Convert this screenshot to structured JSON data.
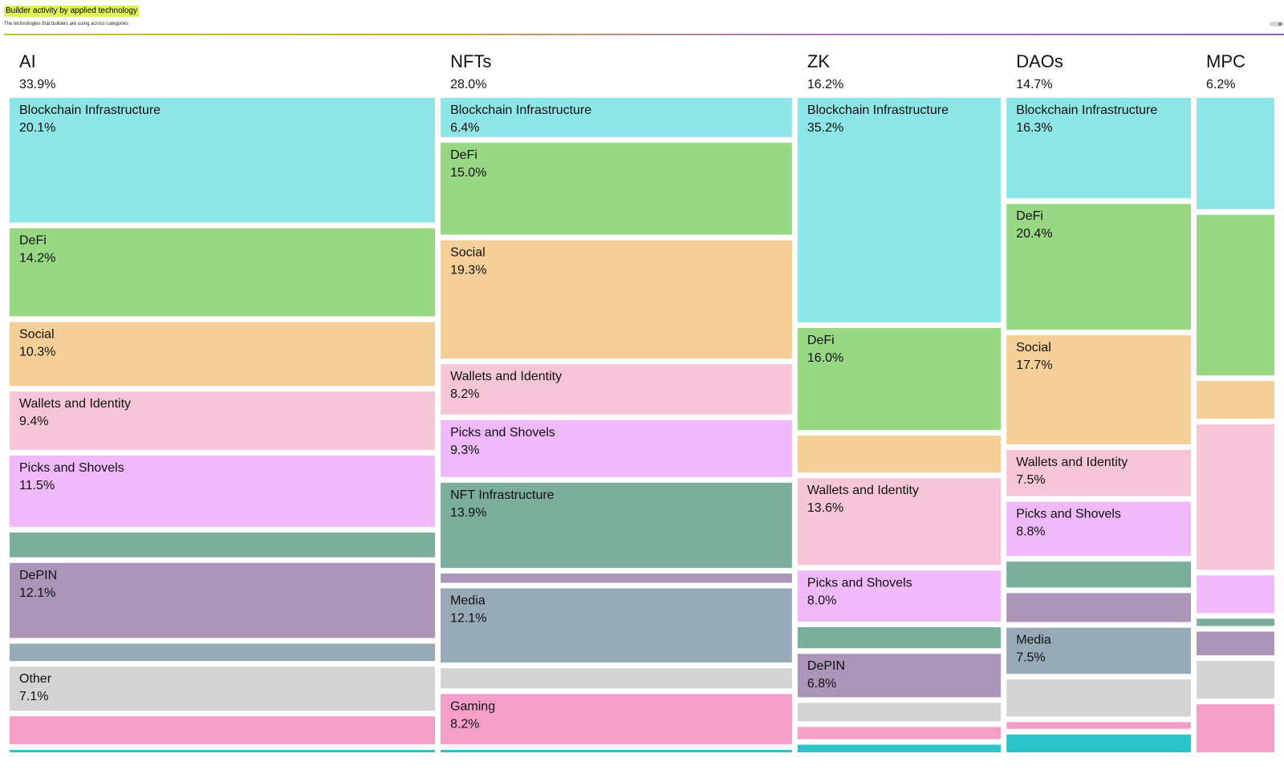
{
  "title": "Builder activity by applied technology",
  "subtitle": "The technologies that builders are using across categories",
  "colors": {
    "Blockchain Infrastructure": "#8ee5e5",
    "DeFi": "#98d884",
    "Social": "#f5cf98",
    "Wallets and Identity": "#f7c5d8",
    "Picks and Shovels": "#efb9fa",
    "NFT Infrastructure": "#7bae9b",
    "DePIN": "#ab95b8",
    "Media": "#97aab7",
    "Other": "#d4d4d4",
    "Gaming": "#f59fc8",
    "Teal": "#2cc3c9"
  },
  "chart_data": {
    "type": "treemap",
    "columns": [
      {
        "name": "AI",
        "share": 33.9,
        "cells": [
          {
            "category": "Blockchain Infrastructure",
            "label": "Blockchain Infrastructure",
            "value": 20.1
          },
          {
            "category": "DeFi",
            "label": "DeFi",
            "value": 14.2
          },
          {
            "category": "Social",
            "label": "Social",
            "value": 10.3
          },
          {
            "category": "Wallets and Identity",
            "label": "Wallets and Identity",
            "value": 9.4
          },
          {
            "category": "Picks and Shovels",
            "label": "Picks and Shovels",
            "value": 11.5
          },
          {
            "category": "NFT Infrastructure",
            "label": "",
            "value": 4.0
          },
          {
            "category": "DePIN",
            "label": "DePIN",
            "value": 12.1
          },
          {
            "category": "Media",
            "label": "",
            "value": 2.8
          },
          {
            "category": "Other",
            "label": "Other",
            "value": 7.1
          },
          {
            "category": "Gaming",
            "label": "",
            "value": 4.5
          },
          {
            "category": "Teal",
            "label": "",
            "value": 0.4
          }
        ]
      },
      {
        "name": "NFTs",
        "share": 28.0,
        "cells": [
          {
            "category": "Blockchain Infrastructure",
            "label": "Blockchain Infrastructure",
            "value": 6.4
          },
          {
            "category": "DeFi",
            "label": "DeFi",
            "value": 15.0
          },
          {
            "category": "Social",
            "label": "Social",
            "value": 19.3
          },
          {
            "category": "Wallets and Identity",
            "label": "Wallets and Identity",
            "value": 8.2
          },
          {
            "category": "Picks and Shovels",
            "label": "Picks and Shovels",
            "value": 9.3
          },
          {
            "category": "NFT Infrastructure",
            "label": "NFT Infrastructure",
            "value": 13.9
          },
          {
            "category": "DePIN",
            "label": "",
            "value": 1.5
          },
          {
            "category": "Media",
            "label": "Media",
            "value": 12.1
          },
          {
            "category": "Other",
            "label": "",
            "value": 3.3
          },
          {
            "category": "Gaming",
            "label": "Gaming",
            "value": 8.2
          },
          {
            "category": "Teal",
            "label": "",
            "value": 0.4
          }
        ]
      },
      {
        "name": "ZK",
        "share": 16.2,
        "cells": [
          {
            "category": "Blockchain Infrastructure",
            "label": "Blockchain Infrastructure",
            "value": 35.2
          },
          {
            "category": "DeFi",
            "label": "DeFi",
            "value": 16.0
          },
          {
            "category": "Social",
            "label": "",
            "value": 5.8
          },
          {
            "category": "Wallets and Identity",
            "label": "Wallets and Identity",
            "value": 13.6
          },
          {
            "category": "Picks and Shovels",
            "label": "Picks and Shovels",
            "value": 8.0
          },
          {
            "category": "NFT Infrastructure",
            "label": "",
            "value": 3.3
          },
          {
            "category": "DePIN",
            "label": "DePIN",
            "value": 6.8
          },
          {
            "category": "Other",
            "label": "",
            "value": 2.9
          },
          {
            "category": "Gaming",
            "label": "",
            "value": 1.9
          },
          {
            "category": "Teal",
            "label": "",
            "value": 1.2
          }
        ]
      },
      {
        "name": "DAOs",
        "share": 14.7,
        "cells": [
          {
            "category": "Blockchain Infrastructure",
            "label": "Blockchain Infrastructure",
            "value": 16.3
          },
          {
            "category": "DeFi",
            "label": "DeFi",
            "value": 20.4
          },
          {
            "category": "Social",
            "label": "Social",
            "value": 17.7
          },
          {
            "category": "Wallets and Identity",
            "label": "Wallets and Identity",
            "value": 7.5
          },
          {
            "category": "Picks and Shovels",
            "label": "Picks and Shovels",
            "value": 8.8
          },
          {
            "category": "NFT Infrastructure",
            "label": "",
            "value": 4.2
          },
          {
            "category": "DePIN",
            "label": "",
            "value": 4.7
          },
          {
            "category": "Media",
            "label": "Media",
            "value": 7.5
          },
          {
            "category": "Other",
            "label": "",
            "value": 6.0
          },
          {
            "category": "Gaming",
            "label": "",
            "value": 1.1
          },
          {
            "category": "Teal",
            "label": "",
            "value": 2.9
          }
        ]
      },
      {
        "name": "MPC",
        "share": 6.2,
        "cells": [
          {
            "category": "Blockchain Infrastructure",
            "label": "",
            "value": 18.3
          },
          {
            "category": "DeFi",
            "label": "",
            "value": 26.4
          },
          {
            "category": "Social",
            "label": "",
            "value": 6.2
          },
          {
            "category": "Wallets and Identity",
            "label": "",
            "value": 23.9
          },
          {
            "category": "Picks and Shovels",
            "label": "",
            "value": 6.2
          },
          {
            "category": "NFT Infrastructure",
            "label": "",
            "value": 1.2
          },
          {
            "category": "DePIN",
            "label": "",
            "value": 3.9
          },
          {
            "category": "Other",
            "label": "",
            "value": 6.2
          },
          {
            "category": "Gaming",
            "label": "",
            "value": 7.9
          }
        ]
      }
    ]
  }
}
